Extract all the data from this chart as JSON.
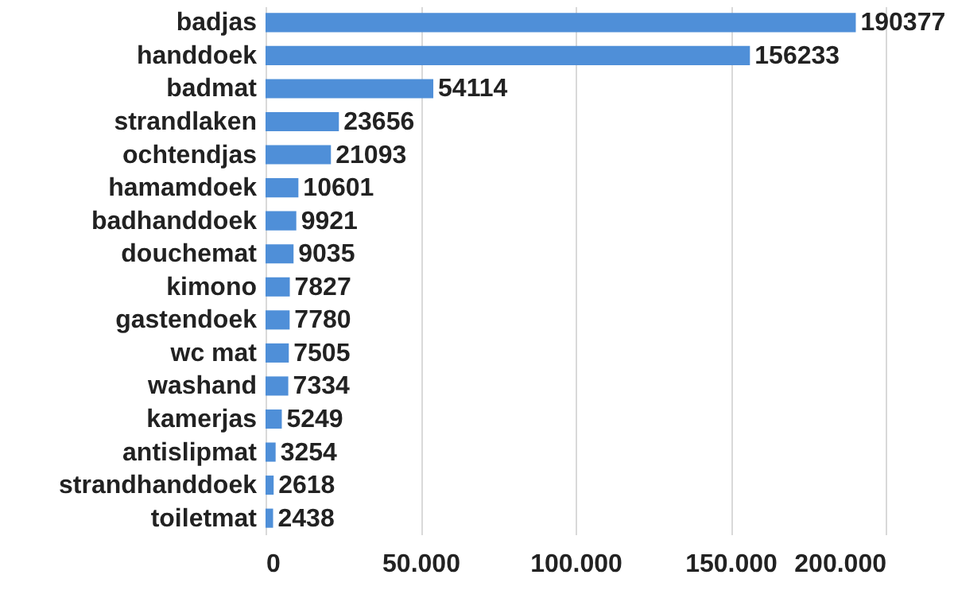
{
  "chart_data": {
    "type": "bar",
    "orientation": "horizontal",
    "categories": [
      "badjas",
      "handdoek",
      "badmat",
      "strandlaken",
      "ochtendjas",
      "hamamdoek",
      "badhanddoek",
      "douchemat",
      "kimono",
      "gastendoek",
      "wc mat",
      "washand",
      "kamerjas",
      "antislipmat",
      "strandhanddoek",
      "toiletmat"
    ],
    "values": [
      190377,
      156233,
      54114,
      23656,
      21093,
      10601,
      9921,
      9035,
      7827,
      7780,
      7505,
      7334,
      5249,
      3254,
      2618,
      2438
    ],
    "color": "#4f8fd8",
    "xlim": [
      0,
      200000
    ],
    "xticks": [
      0,
      {
        "value": 50000,
        "label": "50.000"
      },
      {
        "value": 100000,
        "label": "100.000"
      },
      {
        "value": 150000,
        "label": "150.000"
      },
      {
        "value": 200000,
        "label": "200.000"
      }
    ],
    "grid": "x",
    "data_labels": true
  }
}
